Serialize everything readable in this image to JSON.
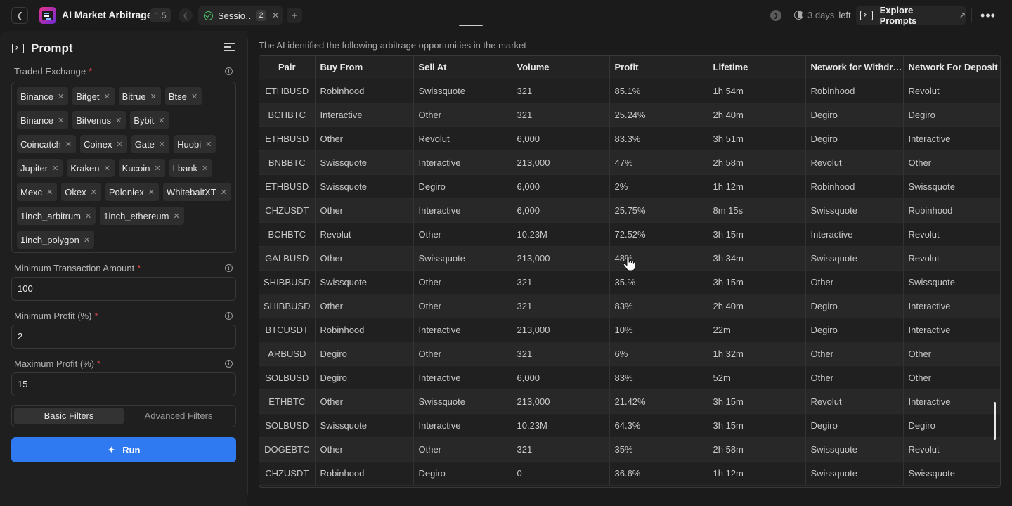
{
  "topbar": {
    "app_title": "AI Market Arbitrage",
    "version": "1.5",
    "session_tab": {
      "label": "Sessio…",
      "count": "2"
    },
    "trial": {
      "days": "3 days",
      "left": "left"
    },
    "explore_label": "Explore Prompts"
  },
  "sidebar": {
    "title": "Prompt",
    "traded_exchange": {
      "label": "Traded Exchange",
      "required": "*",
      "chips": [
        "Binance",
        "Bitget",
        "Bitrue",
        "Btse",
        "Binance",
        "Bitvenus",
        "Bybit",
        "Coincatch",
        "Coinex",
        "Gate",
        "Huobi",
        "Jupiter",
        "Kraken",
        "Kucoin",
        "Lbank",
        "Mexc",
        "Okex",
        "Poloniex",
        "WhitebaitXT",
        "1inch_arbitrum",
        "1inch_ethereum",
        "1inch_polygon"
      ]
    },
    "min_transaction": {
      "label": "Minimum Transaction Amount",
      "required": "*",
      "value": "100"
    },
    "min_profit": {
      "label": "Minimum Profit (%)",
      "required": "*",
      "value": "2"
    },
    "max_profit": {
      "label": "Maximum Profit (%)",
      "required": "*",
      "value": "15"
    },
    "filters": {
      "basic": "Basic Filters",
      "advanced": "Advanced Filters"
    },
    "run_label": "Run"
  },
  "results": {
    "caption": "The AI identified the following arbitrage opportunities in the market",
    "columns": [
      "Pair",
      "Buy From",
      "Sell At",
      "Volume",
      "Profit",
      "Lifetime",
      "Network for Withdr…",
      "Network For Deposit"
    ],
    "rows": [
      [
        "ETHBUSD",
        "Robinhood",
        "Swissquote",
        "321",
        "85.1%",
        "1h 54m",
        "Robinhood",
        "Revolut"
      ],
      [
        "BCHBTC",
        "Interactive",
        "Other",
        "321",
        "25.24%",
        "2h 40m",
        "Degiro",
        "Degiro"
      ],
      [
        "ETHBUSD",
        "Other",
        "Revolut",
        "6,000",
        "83.3%",
        "3h 51m",
        "Degiro",
        "Interactive"
      ],
      [
        "BNBBTC",
        "Swissquote",
        "Interactive",
        "213,000",
        "47%",
        "2h 58m",
        "Revolut",
        "Other"
      ],
      [
        "ETHBUSD",
        "Swissquote",
        "Degiro",
        "6,000",
        "2%",
        "1h 12m",
        "Robinhood",
        "Swissquote"
      ],
      [
        "CHZUSDT",
        "Other",
        "Interactive",
        "6,000",
        "25.75%",
        "8m 15s",
        "Swissquote",
        "Robinhood"
      ],
      [
        "BCHBTC",
        "Revolut",
        "Other",
        "10.23M",
        "72.52%",
        "3h 15m",
        "Interactive",
        "Revolut"
      ],
      [
        "GALBUSD",
        "Other",
        "Swissquote",
        "213,000",
        "48%",
        "3h 34m",
        "Swissquote",
        "Revolut"
      ],
      [
        "SHIBBUSD",
        "Swissquote",
        "Other",
        "321",
        "35.%",
        "3h 15m",
        "Other",
        "Swissquote"
      ],
      [
        "SHIBBUSD",
        "Other",
        "Other",
        "321",
        "83%",
        "2h 40m",
        "Degiro",
        "Interactive"
      ],
      [
        "BTCUSDT",
        "Robinhood",
        "Interactive",
        "213,000",
        "10%",
        "22m",
        "Degiro",
        "Interactive"
      ],
      [
        "ARBUSD",
        "Degiro",
        "Other",
        "321",
        "6%",
        "1h 32m",
        "Other",
        "Other"
      ],
      [
        "SOLBUSD",
        "Degiro",
        "Interactive",
        "6,000",
        "83%",
        "52m",
        "Other",
        "Other"
      ],
      [
        "ETHBTC",
        "Other",
        "Swissquote",
        "213,000",
        "21.42%",
        "3h 15m",
        "Revolut",
        "Interactive"
      ],
      [
        "SOLBUSD",
        "Swissquote",
        "Interactive",
        "10.23M",
        "64.3%",
        "3h 15m",
        "Degiro",
        "Degiro"
      ],
      [
        "DOGEBTC",
        "Other",
        "Other",
        "321",
        "35%",
        "2h 58m",
        "Swissquote",
        "Revolut"
      ],
      [
        "CHZUSDT",
        "Robinhood",
        "Degiro",
        "0",
        "36.6%",
        "1h 12m",
        "Swissquote",
        "Swissquote"
      ]
    ]
  },
  "colors": {
    "accent": "#2f7af0",
    "success": "#4bc46a",
    "required": "#e04848",
    "background": "#1b1b1b"
  }
}
